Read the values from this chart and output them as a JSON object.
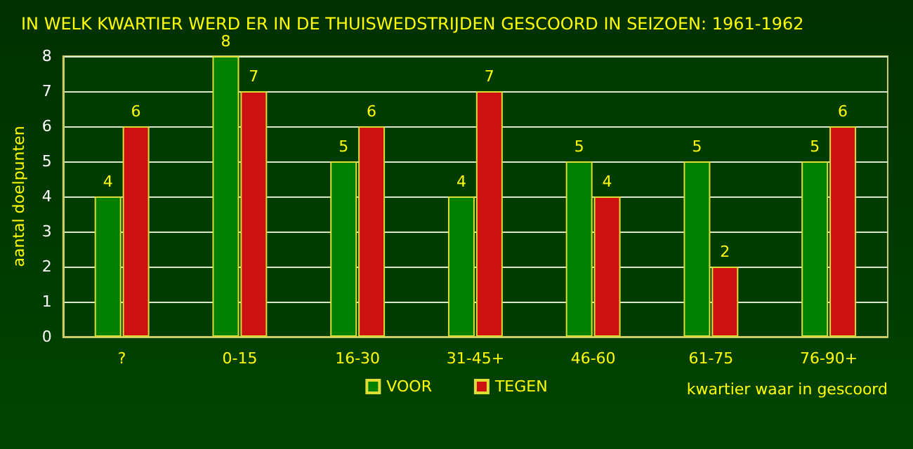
{
  "chart_data": {
    "type": "bar",
    "title": "IN WELK KWARTIER WERD ER IN DE THUISWEDSTRIJDEN GESCOORD IN SEIZOEN: 1961-1962",
    "xlabel": "kwartier waar in gescoord",
    "ylabel": "aantal doelpunten",
    "categories": [
      "?",
      "0-15",
      "16-30",
      "31-45+",
      "46-60",
      "61-75",
      "76-90+"
    ],
    "series": [
      {
        "name": "VOOR",
        "color": "#008000",
        "values": [
          4,
          8,
          5,
          4,
          5,
          5,
          5
        ]
      },
      {
        "name": "TEGEN",
        "color": "#cc1111",
        "values": [
          6,
          7,
          6,
          7,
          4,
          2,
          6
        ]
      }
    ],
    "ylim": [
      0,
      8
    ],
    "yticks": [
      0,
      1,
      2,
      3,
      4,
      5,
      6,
      7,
      8
    ],
    "grid": "y",
    "legend": "bottom",
    "data_labels": true
  }
}
